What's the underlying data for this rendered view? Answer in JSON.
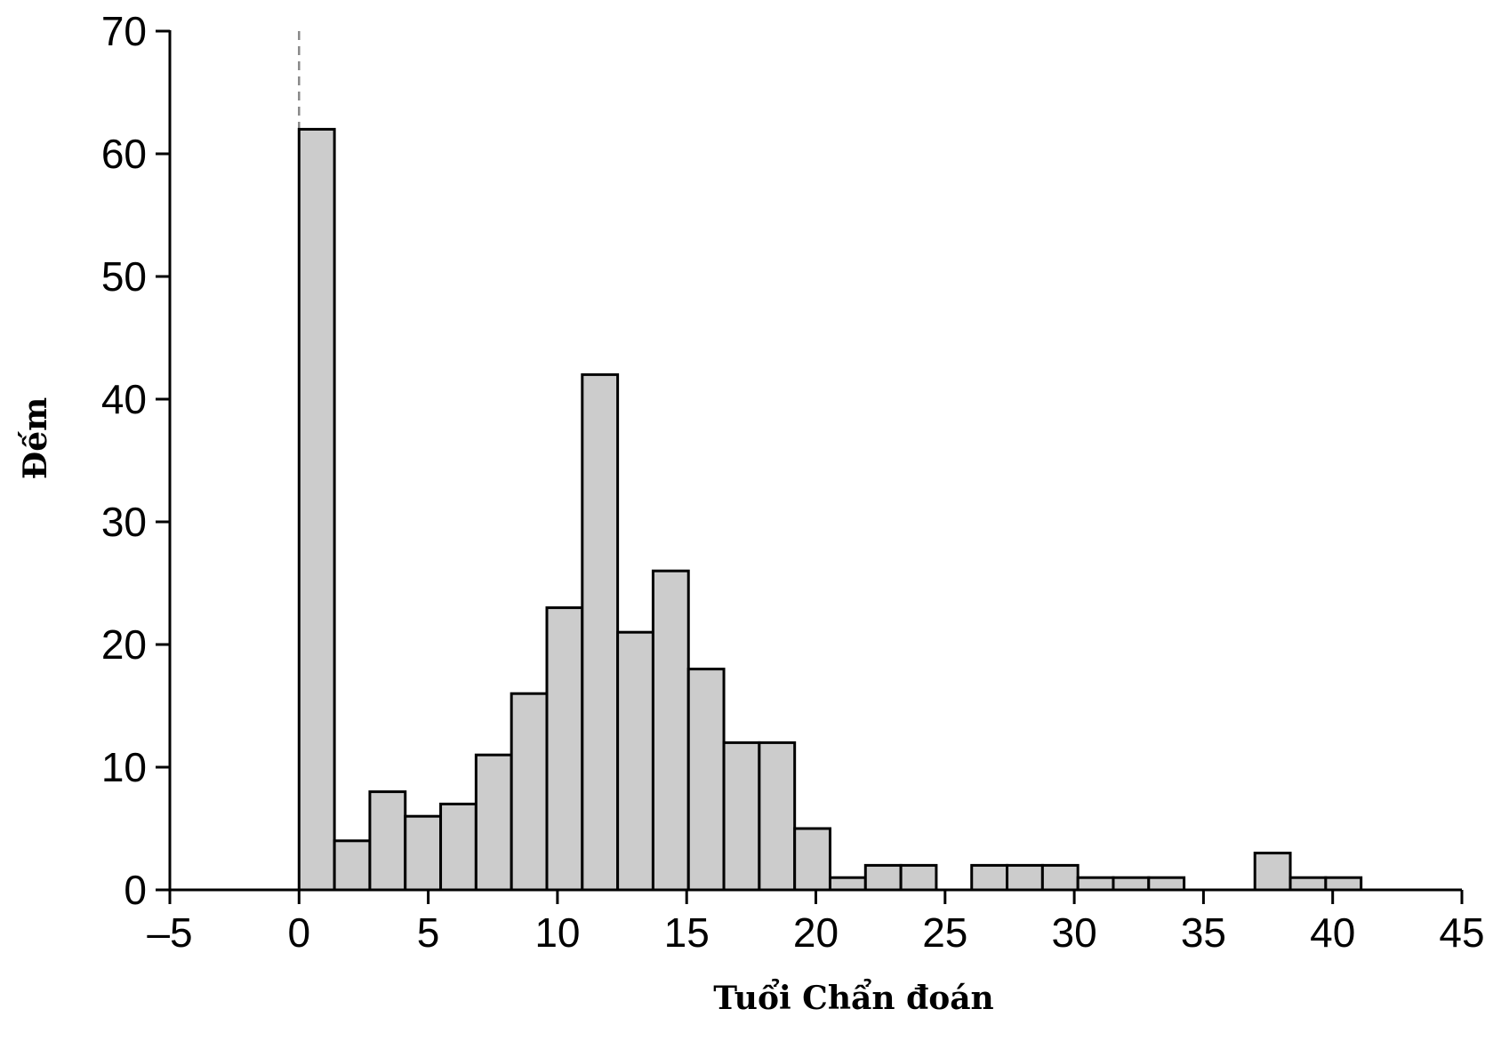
{
  "chart_data": {
    "type": "histogram",
    "xlabel": "Tuổi Chẩn đoán",
    "ylabel": "Đếm",
    "bins": [
      0,
      1.37,
      2.74,
      4.11,
      5.48,
      6.85,
      8.22,
      9.59,
      10.96,
      12.33,
      13.7,
      15.07,
      16.44,
      17.81,
      19.18,
      20.55,
      21.92,
      23.29,
      24.66,
      26.03,
      27.4,
      28.77,
      30.14,
      31.51,
      32.88,
      34.25,
      35.62,
      36.99,
      38.36,
      39.73,
      41.1
    ],
    "values": [
      62,
      4,
      8,
      6,
      7,
      11,
      16,
      23,
      42,
      21,
      26,
      18,
      12,
      12,
      5,
      1,
      2,
      2,
      0,
      2,
      2,
      2,
      1,
      1,
      1,
      0,
      0,
      3,
      1,
      1
    ],
    "color": "#cccccc",
    "edgecolor": "#000000",
    "reference_line_x": 0,
    "xlim": [
      -5,
      45
    ],
    "xticks": [
      {
        "value": -5,
        "label": "–5"
      },
      0,
      5,
      10,
      15,
      20,
      25,
      30,
      35,
      40,
      45
    ],
    "ylim": [
      0,
      70
    ],
    "yticks": [
      0,
      10,
      20,
      30,
      40,
      50,
      60,
      70
    ]
  }
}
